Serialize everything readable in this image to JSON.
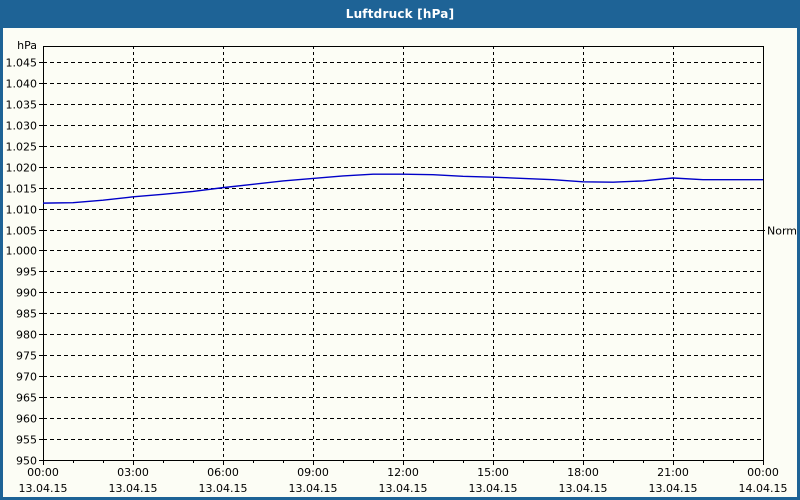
{
  "window": {
    "title": "Luftdruck [hPa]"
  },
  "colors": {
    "titlebar_bg": "#1e6396",
    "titlebar_text": "#ffffff",
    "chart_bg": "#fcfdf5",
    "grid": "#000000",
    "line": "#0000c8",
    "axis_text": "#000000"
  },
  "chart_data": {
    "type": "line",
    "title": "Luftdruck [hPa]",
    "ylabel": "hPa",
    "xlabel": "",
    "ylim": [
      950,
      1048.8
    ],
    "xlim_hours": [
      0,
      24
    ],
    "grid": "dashed",
    "legend_position": "none",
    "series": [
      {
        "name": "Luftdruck",
        "color": "#0000c8",
        "x_hours": [
          0,
          1,
          2,
          3,
          4,
          5,
          6,
          7,
          8,
          9,
          10,
          11,
          12,
          13,
          14,
          15,
          16,
          17,
          18,
          19,
          20,
          21,
          22,
          23,
          24
        ],
        "values": [
          1011.3,
          1011.4,
          1012.0,
          1012.8,
          1013.4,
          1014.1,
          1015.0,
          1015.8,
          1016.6,
          1017.2,
          1017.8,
          1018.2,
          1018.2,
          1018.1,
          1017.7,
          1017.5,
          1017.2,
          1016.9,
          1016.4,
          1016.3,
          1016.6,
          1017.3,
          1016.9,
          1016.9,
          1016.9
        ]
      }
    ],
    "y_ticks": [
      {
        "v": 1045,
        "label": "1.045"
      },
      {
        "v": 1040,
        "label": "1.040"
      },
      {
        "v": 1035,
        "label": "1.035"
      },
      {
        "v": 1030,
        "label": "1.030"
      },
      {
        "v": 1025,
        "label": "1.025"
      },
      {
        "v": 1020,
        "label": "1.020"
      },
      {
        "v": 1015,
        "label": "1.015"
      },
      {
        "v": 1010,
        "label": "1.010"
      },
      {
        "v": 1005,
        "label": "1.005"
      },
      {
        "v": 1000,
        "label": "1.000"
      },
      {
        "v": 995,
        "label": "995"
      },
      {
        "v": 990,
        "label": "990"
      },
      {
        "v": 985,
        "label": "985"
      },
      {
        "v": 980,
        "label": "980"
      },
      {
        "v": 975,
        "label": "975"
      },
      {
        "v": 970,
        "label": "970"
      },
      {
        "v": 965,
        "label": "965"
      },
      {
        "v": 960,
        "label": "960"
      },
      {
        "v": 955,
        "label": "955"
      },
      {
        "v": 950,
        "label": "950"
      }
    ],
    "x_major_ticks": [
      {
        "hour": 0,
        "time": "00:00",
        "date": "13.04.15"
      },
      {
        "hour": 3,
        "time": "03:00",
        "date": "13.04.15"
      },
      {
        "hour": 6,
        "time": "06:00",
        "date": "13.04.15"
      },
      {
        "hour": 9,
        "time": "09:00",
        "date": "13.04.15"
      },
      {
        "hour": 12,
        "time": "12:00",
        "date": "13.04.15"
      },
      {
        "hour": 15,
        "time": "15:00",
        "date": "13.04.15"
      },
      {
        "hour": 18,
        "time": "18:00",
        "date": "13.04.15"
      },
      {
        "hour": 21,
        "time": "21:00",
        "date": "13.04.15"
      },
      {
        "hour": 24,
        "time": "00:00",
        "date": "14.04.15"
      }
    ],
    "x_minor_tick_every_hours": 1,
    "annotations": [
      {
        "label": "Normal",
        "value": 1005
      }
    ]
  }
}
